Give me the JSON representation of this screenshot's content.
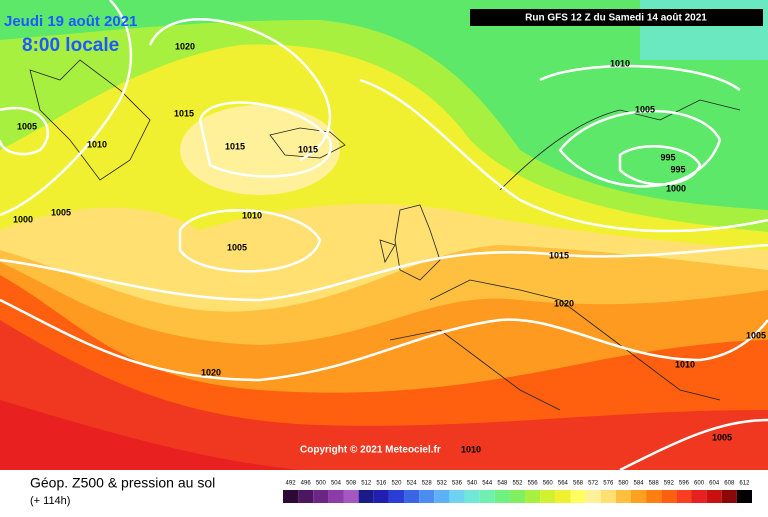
{
  "header": {
    "date": "Jeudi 19 août 2021",
    "time": "8:00 locale",
    "run": "Run GFS 12 Z du Samedi 14 août 2021"
  },
  "isobar_labels": [
    "1020",
    "1005",
    "1010",
    "1015",
    "1015",
    "1015",
    "1000",
    "1005",
    "1010",
    "1005",
    "1010",
    "1005",
    "995",
    "995",
    "1000",
    "1015",
    "1020",
    "1010",
    "1005",
    "1020",
    "1005",
    "1010"
  ],
  "copyright": "Copyright © 2021 Meteociel.fr",
  "footer": {
    "title": "Géop. Z500 & pression au sol",
    "lead": "(+ 114h)"
  },
  "colorbar": {
    "values": [
      492,
      496,
      500,
      504,
      508,
      512,
      516,
      520,
      524,
      528,
      532,
      536,
      540,
      544,
      548,
      552,
      556,
      560,
      564,
      568,
      572,
      576,
      580,
      584,
      588,
      592,
      596,
      600,
      604,
      608,
      612
    ],
    "colors": [
      "#2b0b36",
      "#4d1660",
      "#6c2585",
      "#8c3ca6",
      "#a556bf",
      "#1a1a8a",
      "#2020b0",
      "#2a3ed6",
      "#3a66e6",
      "#4b8cf0",
      "#5fb0f5",
      "#6fd2f0",
      "#6fe8d8",
      "#6ff0b0",
      "#70f080",
      "#80f060",
      "#a8f040",
      "#d0f030",
      "#f0f030",
      "#ffff60",
      "#fff09a",
      "#ffe070",
      "#ffc040",
      "#ffa020",
      "#ff8010",
      "#ff6010",
      "#f84020",
      "#e82020",
      "#c81010",
      "#8a0808",
      "#000000"
    ]
  }
}
